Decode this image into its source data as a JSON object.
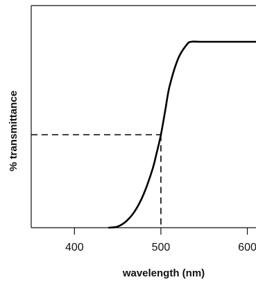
{
  "chart_data": {
    "type": "line",
    "title": "",
    "xlabel": "wavelength (nm)",
    "ylabel": "% transmittance",
    "xlim": [
      350,
      610
    ],
    "ylim": [
      0,
      100
    ],
    "x_ticks": [
      400,
      500,
      600
    ],
    "x_tick_labels": [
      "400",
      "500",
      "600"
    ],
    "grid": false,
    "legend": "none",
    "series": [
      {
        "x": [
          440,
          450,
          460,
          470,
          480,
          490,
          495,
          500,
          505,
          510,
          520,
          530,
          535,
          545,
          560,
          580,
          600,
          610
        ],
        "y": [
          0,
          0.6,
          3.5,
          9,
          18,
          31,
          40,
          50,
          63,
          76,
          91,
          98.5,
          100,
          100,
          100,
          100,
          100,
          100
        ],
        "color": "#000000"
      }
    ],
    "reference_lines": {
      "x_value": 500,
      "y_value": 50,
      "style": "dashed",
      "color": "#000000"
    },
    "colors": {
      "axis": "#111111",
      "text": "#111111"
    }
  }
}
